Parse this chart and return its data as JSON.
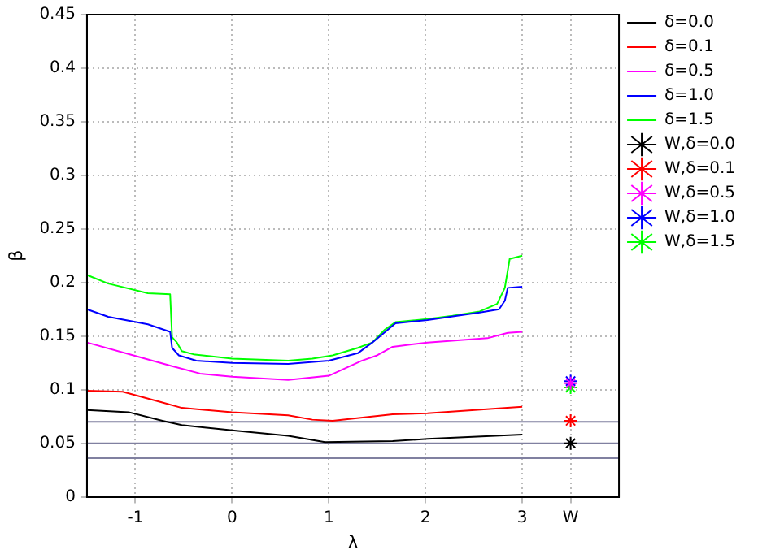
{
  "chart_data": {
    "type": "line",
    "xlabel": "λ",
    "ylabel": "β",
    "xlim": [
      -1.5,
      4
    ],
    "xticks": [
      -1,
      0,
      1,
      2,
      3,
      {
        "value": 3.5,
        "label": "W"
      }
    ],
    "ylim": [
      0,
      0.45
    ],
    "yticks": [
      0,
      0.05,
      0.1,
      0.15,
      0.2,
      0.25,
      0.3,
      0.35,
      0.4,
      0.45
    ],
    "grid": true,
    "legend": "right",
    "marker": "none",
    "line_style": "solid",
    "series": [
      {
        "name": "δ=0.0",
        "color": "#000000",
        "x": [
          -1.5,
          -1.07,
          -0.72,
          -0.52,
          0,
          0.58,
          0.96,
          1.66,
          2.02,
          3
        ],
        "values": [
          0.081,
          0.079,
          0.071,
          0.067,
          0.062,
          0.057,
          0.051,
          0.052,
          0.054,
          0.058
        ]
      },
      {
        "name": "δ=0.1",
        "color": "#ff0000",
        "x": [
          -1.5,
          -1.13,
          -0.72,
          -0.52,
          0,
          0.58,
          0.83,
          1.04,
          1.66,
          2.02,
          3
        ],
        "values": [
          0.099,
          0.098,
          0.088,
          0.083,
          0.079,
          0.076,
          0.072,
          0.071,
          0.077,
          0.078,
          0.084
        ]
      },
      {
        "name": "δ=0.5",
        "color": "#ff00ff",
        "x": [
          -1.5,
          -1.02,
          -0.62,
          -0.33,
          0,
          0.58,
          1.0,
          1.34,
          1.5,
          1.66,
          2.02,
          2.64,
          2.85,
          3
        ],
        "values": [
          0.144,
          0.132,
          0.122,
          0.115,
          0.112,
          0.109,
          0.113,
          0.127,
          0.132,
          0.14,
          0.144,
          0.148,
          0.153,
          0.154
        ]
      },
      {
        "name": "δ=1.0",
        "color": "#0000ff",
        "x": [
          -1.5,
          -1.28,
          -0.87,
          -0.64,
          -0.62,
          -0.55,
          -0.37,
          0,
          0.58,
          1.0,
          1.3,
          1.45,
          1.69,
          2.02,
          2.56,
          2.76,
          2.82,
          2.85,
          3
        ],
        "values": [
          0.175,
          0.168,
          0.161,
          0.154,
          0.139,
          0.132,
          0.127,
          0.125,
          0.124,
          0.127,
          0.134,
          0.144,
          0.162,
          0.165,
          0.172,
          0.175,
          0.183,
          0.195,
          0.196
        ]
      },
      {
        "name": "δ=1.5",
        "color": "#00ff00",
        "x": [
          -1.5,
          -1.28,
          -0.87,
          -0.64,
          -0.62,
          -0.57,
          -0.52,
          -0.4,
          0,
          0.58,
          0.83,
          1.04,
          1.3,
          1.45,
          1.58,
          1.69,
          2.02,
          2.28,
          2.56,
          2.74,
          2.82,
          2.87,
          3
        ],
        "values": [
          0.207,
          0.199,
          0.19,
          0.189,
          0.149,
          0.144,
          0.136,
          0.133,
          0.129,
          0.127,
          0.129,
          0.132,
          0.139,
          0.144,
          0.156,
          0.163,
          0.166,
          0.169,
          0.173,
          0.18,
          0.195,
          0.222,
          0.225
        ]
      },
      {
        "name": "W,δ=0.0",
        "type": "scatter",
        "marker": "cross",
        "color": "#000000",
        "x": [
          3.5
        ],
        "values": [
          0.05
        ]
      },
      {
        "name": "W,δ=0.1",
        "type": "scatter",
        "marker": "cross",
        "color": "#ff0000",
        "x": [
          3.5
        ],
        "values": [
          0.071
        ]
      },
      {
        "name": "W,δ=0.5",
        "type": "scatter",
        "marker": "cross",
        "color": "#ff00ff",
        "x": [
          3.5
        ],
        "values": [
          0.106
        ]
      },
      {
        "name": "W,δ=1.0",
        "type": "scatter",
        "marker": "cross",
        "color": "#0000ff",
        "x": [
          3.5
        ],
        "values": [
          0.108
        ]
      },
      {
        "name": "W,δ=1.5",
        "type": "scatter",
        "marker": "cross",
        "color": "#00ff00",
        "x": [
          3.5
        ],
        "values": [
          0.102
        ]
      }
    ],
    "ref_lines": [
      {
        "axis": "y",
        "value": 0.07,
        "color": "#8080a0"
      },
      {
        "axis": "y",
        "value": 0.05,
        "color": "#8080a0"
      },
      {
        "axis": "y",
        "value": 0.036,
        "color": "#8080a0"
      }
    ]
  }
}
